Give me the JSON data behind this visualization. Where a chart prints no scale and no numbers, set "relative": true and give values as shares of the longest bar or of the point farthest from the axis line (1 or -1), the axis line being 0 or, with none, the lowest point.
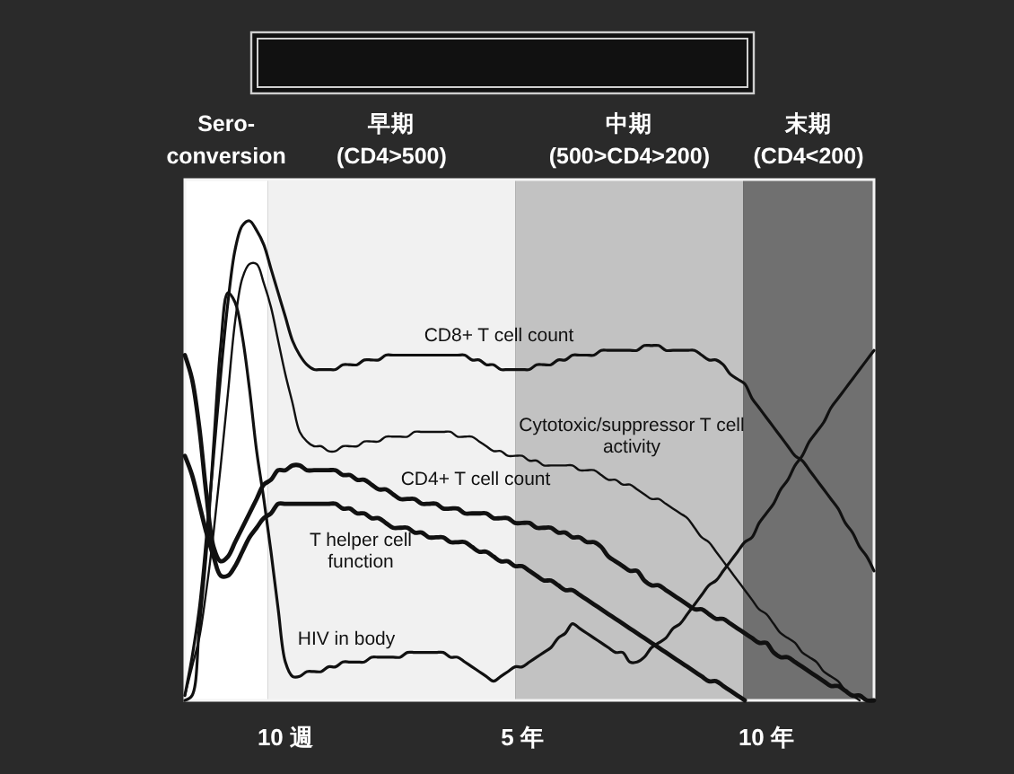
{
  "chart_data": {
    "type": "line",
    "relative": true,
    "categories": [
      null,
      null,
      null,
      null,
      null,
      null,
      null,
      null,
      null,
      null,
      null,
      null,
      null,
      null,
      "10 週",
      null,
      null,
      null,
      null,
      null,
      null,
      null,
      null,
      null,
      null,
      null,
      null,
      null,
      null,
      null,
      null,
      null,
      null,
      null,
      null,
      null,
      null,
      null,
      null,
      null,
      null,
      null,
      null,
      null,
      null,
      null,
      null,
      "5 年",
      null,
      null,
      null,
      null,
      null,
      null,
      null,
      null,
      null,
      null,
      null,
      null,
      null,
      null,
      null,
      null,
      null,
      null,
      null,
      null,
      null,
      null,
      null,
      null,
      null,
      null,
      null,
      null,
      null,
      null,
      null,
      null,
      null,
      "10 年",
      null,
      null,
      null,
      null,
      null,
      null,
      null,
      null,
      null,
      null,
      null,
      null,
      null,
      null,
      null
    ],
    "annotations": [
      "Sero-\nconversion",
      "早期\n(CD4>500)",
      "中期\n(500>CD4>200)",
      "末期\n(CD4<200)"
    ],
    "series": [
      {
        "name": "CD8+ T cell count",
        "color": "#111111",
        "values": [
          0.01,
          0.09,
          0.19,
          0.34,
          0.51,
          0.68,
          0.83,
          0.94,
          0.99,
          1,
          0.98,
          0.95,
          0.9,
          0.85,
          0.8,
          0.75,
          0.72,
          0.7,
          0.69,
          0.69,
          0.69,
          0.69,
          0.7,
          0.7,
          0.7,
          0.71,
          0.71,
          0.71,
          0.72,
          0.72,
          0.72,
          0.72,
          0.72,
          0.72,
          0.72,
          0.72,
          0.72,
          0.72,
          0.72,
          0.72,
          0.71,
          0.71,
          0.7,
          0.7,
          0.69,
          0.69,
          0.69,
          0.69,
          0.69,
          0.7,
          0.7,
          0.7,
          0.71,
          0.71,
          0.72,
          0.72,
          0.72,
          0.72,
          0.73,
          0.73,
          0.73,
          0.73,
          0.73,
          0.73,
          0.74,
          0.74,
          0.74,
          0.73,
          0.73,
          0.73,
          0.73,
          0.73,
          0.72,
          0.71,
          0.71,
          0.7,
          0.68,
          0.67,
          0.66,
          0.63,
          0.61,
          0.59,
          0.57,
          0.55,
          0.53,
          0.51,
          0.5,
          0.48,
          0.46,
          0.44,
          0.42,
          0.4,
          0.37,
          0.35,
          0.32,
          0.3,
          0.27
        ]
      },
      {
        "name": "Cytotoxic/suppressor T cell\nactivity",
        "color": "#111111",
        "values": [
          0.01,
          0.07,
          0.13,
          0.23,
          0.35,
          0.49,
          0.64,
          0.79,
          0.88,
          0.91,
          0.91,
          0.87,
          0.82,
          0.75,
          0.68,
          0.62,
          0.56,
          0.54,
          0.53,
          0.53,
          0.52,
          0.52,
          0.53,
          0.53,
          0.53,
          0.54,
          0.54,
          0.54,
          0.55,
          0.55,
          0.55,
          0.55,
          0.56,
          0.56,
          0.56,
          0.56,
          0.56,
          0.56,
          0.55,
          0.55,
          0.55,
          0.54,
          0.53,
          0.52,
          0.52,
          0.51,
          0.51,
          0.51,
          0.5,
          0.5,
          0.49,
          0.49,
          0.49,
          0.49,
          0.49,
          0.48,
          0.48,
          0.48,
          0.47,
          0.46,
          0.46,
          0.45,
          0.45,
          0.44,
          0.43,
          0.42,
          0.42,
          0.41,
          0.4,
          0.39,
          0.38,
          0.36,
          0.34,
          0.33,
          0.31,
          0.29,
          0.27,
          0.25,
          0.23,
          0.21,
          0.19,
          0.18,
          0.16,
          0.14,
          0.13,
          0.12,
          0.1,
          0.09,
          0.08,
          0.06,
          0.05,
          0.04,
          0.02,
          0.01,
          0,
          null,
          null
        ]
      },
      {
        "name": "CD4+ T cell count",
        "color": "#111111",
        "values": [
          0.72,
          0.67,
          0.57,
          0.43,
          0.32,
          0.29,
          0.3,
          0.33,
          0.36,
          0.39,
          0.42,
          0.45,
          0.46,
          0.48,
          0.48,
          0.49,
          0.49,
          0.48,
          0.48,
          0.48,
          0.48,
          0.48,
          0.47,
          0.47,
          0.46,
          0.46,
          0.45,
          0.44,
          0.44,
          0.43,
          0.42,
          0.42,
          0.42,
          0.41,
          0.41,
          0.41,
          0.4,
          0.4,
          0.4,
          0.39,
          0.39,
          0.39,
          0.39,
          0.38,
          0.38,
          0.38,
          0.37,
          0.37,
          0.37,
          0.36,
          0.36,
          0.36,
          0.35,
          0.35,
          0.34,
          0.34,
          0.33,
          0.33,
          0.32,
          0.3,
          0.29,
          0.28,
          0.27,
          0.27,
          0.25,
          0.24,
          0.24,
          0.23,
          0.22,
          0.21,
          0.2,
          0.19,
          0.19,
          0.18,
          0.17,
          0.17,
          0.16,
          0.15,
          0.14,
          0.13,
          0.12,
          0.12,
          0.1,
          0.09,
          0.09,
          0.08,
          0.07,
          0.06,
          0.05,
          0.04,
          0.03,
          0.03,
          0.02,
          0.01,
          0.01,
          0,
          0
        ]
      },
      {
        "name": "T helper cell\nfunction",
        "color": "#111111",
        "values": [
          0.51,
          0.47,
          0.41,
          0.35,
          0.3,
          0.26,
          0.26,
          0.28,
          0.31,
          0.34,
          0.36,
          0.38,
          0.39,
          0.41,
          0.41,
          0.41,
          0.41,
          0.41,
          0.41,
          0.41,
          0.41,
          0.41,
          0.4,
          0.4,
          0.39,
          0.39,
          0.38,
          0.38,
          0.37,
          0.36,
          0.36,
          0.36,
          0.35,
          0.35,
          0.34,
          0.34,
          0.34,
          0.33,
          0.33,
          0.33,
          0.32,
          0.31,
          0.31,
          0.3,
          0.29,
          0.29,
          0.28,
          0.28,
          0.27,
          0.26,
          0.25,
          0.25,
          0.24,
          0.23,
          0.23,
          0.22,
          0.21,
          0.2,
          0.19,
          0.18,
          0.17,
          0.16,
          0.15,
          0.14,
          0.13,
          0.12,
          0.11,
          0.1,
          0.09,
          0.08,
          0.07,
          0.06,
          0.05,
          0.04,
          0.04,
          0.03,
          0.02,
          0.01,
          0,
          null,
          null,
          null,
          null,
          null,
          null,
          null,
          null,
          null,
          null,
          null,
          null,
          null,
          null,
          null,
          null,
          null,
          null
        ]
      },
      {
        "name": "HIV in body",
        "color": "#111111",
        "values": [
          0,
          0.01,
          0.15,
          0.31,
          0.53,
          0.74,
          0.85,
          0.83,
          0.76,
          0.65,
          0.52,
          0.42,
          0.31,
          0.19,
          0.08,
          0.05,
          0.05,
          0.06,
          0.06,
          0.06,
          0.07,
          0.07,
          0.08,
          0.08,
          0.08,
          0.08,
          0.09,
          0.09,
          0.09,
          0.09,
          0.09,
          0.1,
          0.1,
          0.1,
          0.1,
          0.1,
          0.1,
          0.09,
          0.09,
          0.08,
          0.07,
          0.06,
          0.05,
          0.04,
          0.05,
          0.06,
          0.07,
          0.07,
          0.08,
          0.09,
          0.1,
          0.11,
          0.13,
          0.14,
          0.16,
          0.15,
          0.14,
          0.13,
          0.12,
          0.11,
          0.1,
          0.1,
          0.08,
          0.08,
          0.09,
          0.11,
          0.12,
          0.13,
          0.15,
          0.16,
          0.18,
          0.2,
          0.22,
          0.24,
          0.25,
          0.27,
          0.29,
          0.31,
          0.33,
          0.34,
          0.37,
          0.39,
          0.41,
          0.44,
          0.46,
          0.49,
          0.51,
          0.54,
          0.56,
          0.58,
          0.61,
          0.63,
          0.65,
          0.67,
          0.69,
          0.71,
          0.73
        ]
      }
    ]
  }
}
